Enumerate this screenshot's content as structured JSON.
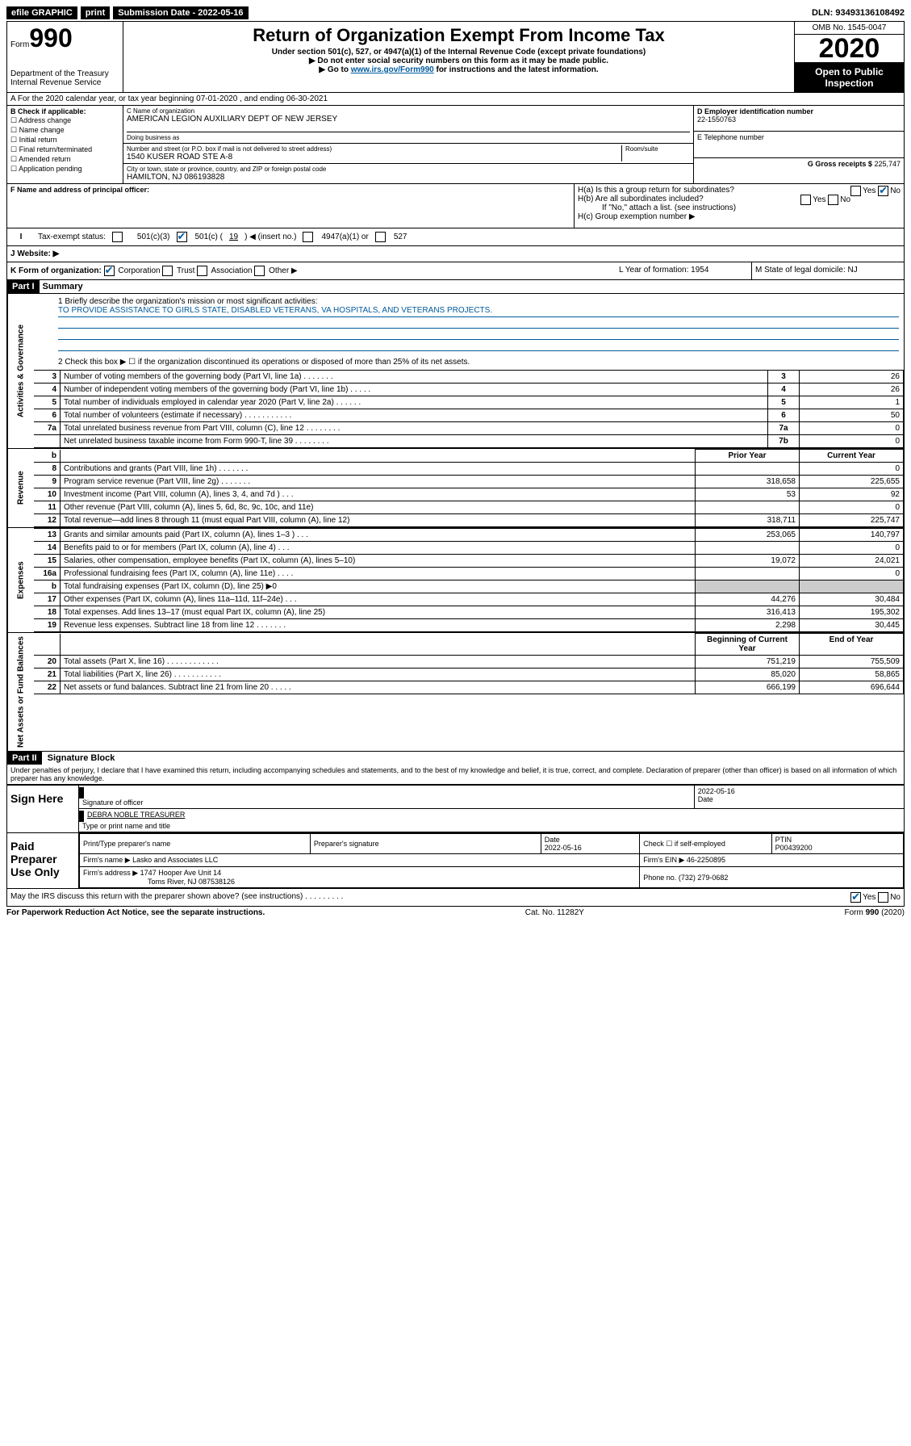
{
  "topbar": {
    "efile": "efile GRAPHIC",
    "print": "print",
    "sub_label": "Submission Date - 2022-05-16",
    "dln": "DLN: 93493136108492"
  },
  "header": {
    "form_prefix": "Form",
    "form_num": "990",
    "dept": "Department of the Treasury",
    "irs": "Internal Revenue Service",
    "title": "Return of Organization Exempt From Income Tax",
    "sub1": "Under section 501(c), 527, or 4947(a)(1) of the Internal Revenue Code (except private foundations)",
    "sub2": "▶ Do not enter social security numbers on this form as it may be made public.",
    "sub3_pre": "▶ Go to ",
    "sub3_link": "www.irs.gov/Form990",
    "sub3_post": " for instructions and the latest information.",
    "omb": "OMB No. 1545-0047",
    "year": "2020",
    "open": "Open to Public Inspection"
  },
  "row_a": "A For the 2020 calendar year, or tax year beginning 07-01-2020    , and ending 06-30-2021",
  "box_b": {
    "label": "B Check if applicable:",
    "opts": [
      "Address change",
      "Name change",
      "Initial return",
      "Final return/terminated",
      "Amended return",
      "Application pending"
    ]
  },
  "box_c": {
    "name_label": "C Name of organization",
    "name": "AMERICAN LEGION AUXILIARY DEPT OF NEW JERSEY",
    "dba_label": "Doing business as",
    "addr_label": "Number and street (or P.O. box if mail is not delivered to street address)",
    "room_label": "Room/suite",
    "addr": "1540 KUSER ROAD STE A-8",
    "city_label": "City or town, state or province, country, and ZIP or foreign postal code",
    "city": "HAMILTON, NJ  086193828"
  },
  "box_d": {
    "label": "D Employer identification number",
    "val": "22-1550763"
  },
  "box_e": {
    "label": "E Telephone number"
  },
  "box_g": {
    "label": "G Gross receipts $",
    "val": "225,747"
  },
  "box_f": {
    "label": "F Name and address of principal officer:"
  },
  "box_h": {
    "ha": "H(a)  Is this a group return for subordinates?",
    "ha_yes": "Yes",
    "ha_no": "No",
    "hb": "H(b)  Are all subordinates included?",
    "hb_yes": "Yes",
    "hb_no": "No",
    "hb_note": "If \"No,\" attach a list. (see instructions)",
    "hc": "H(c)  Group exemption number ▶"
  },
  "tax_status": {
    "label": "Tax-exempt status:",
    "o1": "501(c)(3)",
    "o2_pre": "501(c) (",
    "o2_num": "19",
    "o2_post": ") ◀ (insert no.)",
    "o3": "4947(a)(1) or",
    "o4": "527"
  },
  "website": {
    "label": "J   Website: ▶"
  },
  "row_k": {
    "k": "K Form of organization:",
    "corp": "Corporation",
    "trust": "Trust",
    "assoc": "Association",
    "other": "Other ▶",
    "l": "L Year of formation: 1954",
    "m": "M State of legal domicile: NJ"
  },
  "part1": {
    "header": "Part I",
    "title": "Summary",
    "side1": "Activities & Governance",
    "side2": "Revenue",
    "side3": "Expenses",
    "side4": "Net Assets or Fund Balances",
    "q1": "1  Briefly describe the organization's mission or most significant activities:",
    "mission": "TO PROVIDE ASSISTANCE TO GIRLS STATE, DISABLED VETERANS, VA HOSPITALS, AND VETERANS PROJECTS.",
    "q2": "2   Check this box ▶ ☐  if the organization discontinued its operations or disposed of more than 25% of its net assets.",
    "rows_gov": [
      {
        "n": "3",
        "d": "Number of voting members of the governing body (Part VI, line 1a)   .    .    .    .    .    .    .",
        "b": "3",
        "v": "26"
      },
      {
        "n": "4",
        "d": "Number of independent voting members of the governing body (Part VI, line 1b)   .    .    .    .    .",
        "b": "4",
        "v": "26"
      },
      {
        "n": "5",
        "d": "Total number of individuals employed in calendar year 2020 (Part V, line 2a)   .    .    .    .    .    .",
        "b": "5",
        "v": "1"
      },
      {
        "n": "6",
        "d": "Total number of volunteers (estimate if necessary)   .    .    .    .    .    .    .    .    .    .    .",
        "b": "6",
        "v": "50"
      },
      {
        "n": "7a",
        "d": "Total unrelated business revenue from Part VIII, column (C), line 12   .    .    .    .    .    .    .    .",
        "b": "7a",
        "v": "0"
      },
      {
        "n": "",
        "d": "Net unrelated business taxable income from Form 990-T, line 39   .    .    .    .    .    .    .    .",
        "b": "7b",
        "v": "0"
      }
    ],
    "hdr_prior": "Prior Year",
    "hdr_curr": "Current Year",
    "rows_rev": [
      {
        "n": "8",
        "d": "Contributions and grants (Part VIII, line 1h)   .    .    .    .    .    .    .",
        "p": "",
        "c": "0"
      },
      {
        "n": "9",
        "d": "Program service revenue (Part VIII, line 2g)   .    .    .    .    .    .    .",
        "p": "318,658",
        "c": "225,655"
      },
      {
        "n": "10",
        "d": "Investment income (Part VIII, column (A), lines 3, 4, and 7d )   .    .    .",
        "p": "53",
        "c": "92"
      },
      {
        "n": "11",
        "d": "Other revenue (Part VIII, column (A), lines 5, 6d, 8c, 9c, 10c, and 11e)",
        "p": "",
        "c": "0"
      },
      {
        "n": "12",
        "d": "Total revenue—add lines 8 through 11 (must equal Part VIII, column (A), line 12)",
        "p": "318,711",
        "c": "225,747"
      }
    ],
    "rows_exp": [
      {
        "n": "13",
        "d": "Grants and similar amounts paid (Part IX, column (A), lines 1–3 )   .    .    .",
        "p": "253,065",
        "c": "140,797"
      },
      {
        "n": "14",
        "d": "Benefits paid to or for members (Part IX, column (A), line 4)   .    .    .",
        "p": "",
        "c": "0"
      },
      {
        "n": "15",
        "d": "Salaries, other compensation, employee benefits (Part IX, column (A), lines 5–10)",
        "p": "19,072",
        "c": "24,021"
      },
      {
        "n": "16a",
        "d": "Professional fundraising fees (Part IX, column (A), line 11e)   .    .    .    .",
        "p": "",
        "c": "0"
      },
      {
        "n": "b",
        "d": "Total fundraising expenses (Part IX, column (D), line 25) ▶0",
        "p": "—",
        "c": "—"
      },
      {
        "n": "17",
        "d": "Other expenses (Part IX, column (A), lines 11a–11d, 11f–24e)   .    .    .",
        "p": "44,276",
        "c": "30,484"
      },
      {
        "n": "18",
        "d": "Total expenses. Add lines 13–17 (must equal Part IX, column (A), line 25)",
        "p": "316,413",
        "c": "195,302"
      },
      {
        "n": "19",
        "d": "Revenue less expenses. Subtract line 18 from line 12   .    .    .    .    .    .    .",
        "p": "2,298",
        "c": "30,445"
      }
    ],
    "hdr_beg": "Beginning of Current Year",
    "hdr_end": "End of Year",
    "rows_net": [
      {
        "n": "20",
        "d": "Total assets (Part X, line 16)   .    .    .    .    .    .    .    .    .    .    .    .",
        "p": "751,219",
        "c": "755,509"
      },
      {
        "n": "21",
        "d": "Total liabilities (Part X, line 26)   .    .    .    .    .    .    .    .    .    .    .",
        "p": "85,020",
        "c": "58,865"
      },
      {
        "n": "22",
        "d": "Net assets or fund balances. Subtract line 21 from line 20   .    .    .    .    .",
        "p": "666,199",
        "c": "696,644"
      }
    ]
  },
  "part2": {
    "header": "Part II",
    "title": "Signature Block",
    "perjury": "Under penalties of perjury, I declare that I have examined this return, including accompanying schedules and statements, and to the best of my knowledge and belief, it is true, correct, and complete. Declaration of preparer (other than officer) is based on all information of which preparer has any knowledge.",
    "sign_here": "Sign Here",
    "sig_officer": "Signature of officer",
    "sig_date": "2022-05-16",
    "date_label": "Date",
    "officer_name": "DEBRA NOBLE TREASURER",
    "officer_label": "Type or print name and title",
    "paid": "Paid Preparer Use Only",
    "prep_name_label": "Print/Type preparer's name",
    "prep_sig_label": "Preparer's signature",
    "prep_date_label": "Date",
    "prep_date": "2022-05-16",
    "check_self": "Check ☐ if self-employed",
    "ptin_label": "PTIN",
    "ptin": "P00439200",
    "firm_name_label": "Firm's name    ▶",
    "firm_name": "Lasko and Associates LLC",
    "firm_ein_label": "Firm's EIN ▶",
    "firm_ein": "46-2250895",
    "firm_addr_label": "Firm's address ▶",
    "firm_addr1": "1747 Hooper Ave Unit 14",
    "firm_addr2": "Toms River, NJ  087538126",
    "phone_label": "Phone no.",
    "phone": "(732) 279-0682",
    "discuss": "May the IRS discuss this return with the preparer shown above? (see instructions)   .    .    .    .    .    .    .    .    .",
    "discuss_yes": "Yes",
    "discuss_no": "No"
  },
  "footer": {
    "pra": "For Paperwork Reduction Act Notice, see the separate instructions.",
    "cat": "Cat. No. 11282Y",
    "form": "Form 990 (2020)"
  }
}
